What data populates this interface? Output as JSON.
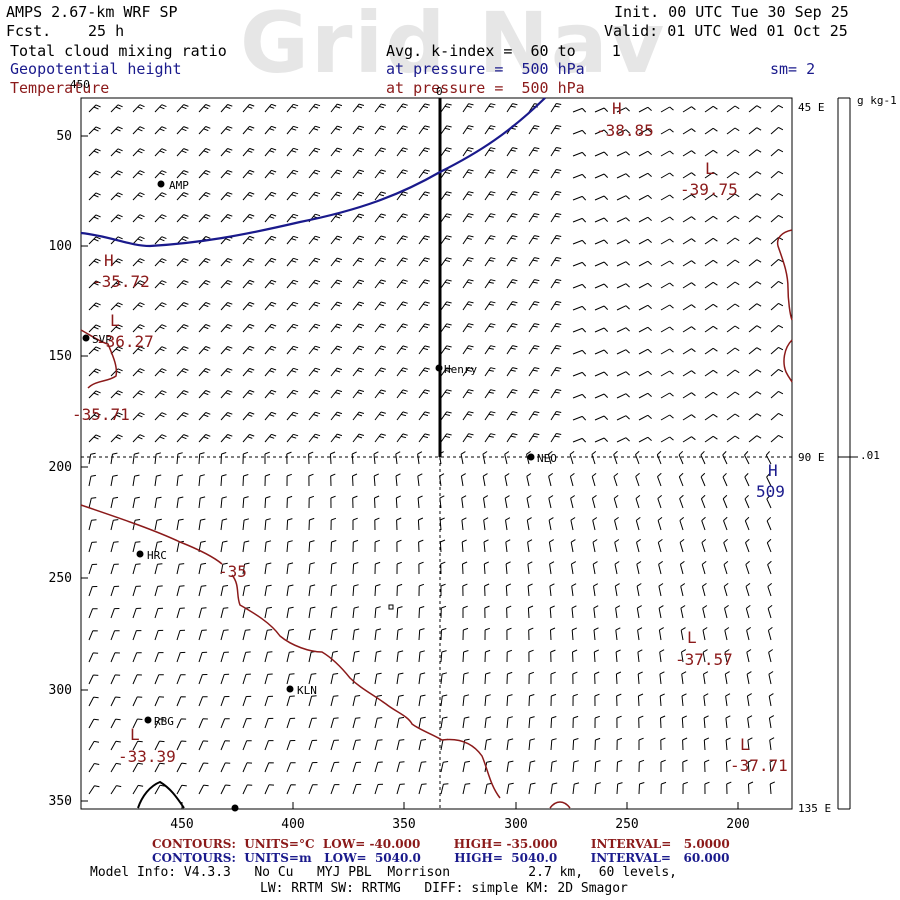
{
  "header": {
    "model": "AMPS 2.67-km WRF SP",
    "fcst_label": "Fcst.",
    "fcst_value": "25 h",
    "init": "Init. 00 UTC Tue 30 Sep 25",
    "valid": "Valid: 01 UTC Wed 01 Oct 25",
    "watermark": "Grid Nav",
    "field1": "Total cloud mixing ratio",
    "field1_avg": "Avg. k-index =  60 to    1",
    "field2": "Geopotential height",
    "field2_level": "at pressure =  500 hPa",
    "field2_sm": "sm= 2",
    "field3": "Temperature",
    "field3_level": "at pressure =  500 hPa"
  },
  "colors": {
    "temperature": "#8b1a1a",
    "height": "#1a1a8c",
    "text": "#000000"
  },
  "plot": {
    "y_ticks": [
      "50",
      "100",
      "150",
      "200",
      "250",
      "300",
      "350"
    ],
    "x_ticks": [
      "450",
      "400",
      "350",
      "300",
      "250",
      "200"
    ],
    "top_tick_label": "0",
    "left_top_label": "450",
    "cross_section_lon": {
      "top": "45 E",
      "mid": "90 E",
      "bottom": "135 E"
    },
    "colorbar_unit": "g kg-1",
    "colorbar_value": ".01"
  },
  "stations": [
    {
      "name": "AMP"
    },
    {
      "name": "SVP"
    },
    {
      "name": "Henry"
    },
    {
      "name": "NEO"
    },
    {
      "name": "HRC"
    },
    {
      "name": "KLN"
    },
    {
      "name": "RBG"
    }
  ],
  "extrema": [
    {
      "kind": "H",
      "value": "-38.85"
    },
    {
      "kind": "L",
      "value": "-39.75"
    },
    {
      "kind": "H",
      "value": "-35.72"
    },
    {
      "kind": "L",
      "value": "-36.27"
    },
    {
      "kind": "",
      "value": "-35.71"
    },
    {
      "kind": "H",
      "value": "509"
    },
    {
      "kind": "",
      "value": "-35"
    },
    {
      "kind": "L",
      "value": "-37.57"
    },
    {
      "kind": "L",
      "value": "-33.39"
    },
    {
      "kind": "L",
      "value": "-37.71"
    }
  ],
  "footer": {
    "contours1": "CONTOURS:  UNITS=°C  LOW= -40.000        HIGH= -35.000        INTERVAL=   5.0000",
    "contours2": "CONTOURS:  UNITS=m   LOW=  5040.0        HIGH=  5040.0        INTERVAL=   60.000",
    "model_info": "Model Info: V4.3.3   No Cu   MYJ PBL  Morrison          2.7 km,  60 levels,",
    "model_info2": "LW: RRTM SW: RRTMG   DIFF: simple KM: 2D Smagor"
  }
}
